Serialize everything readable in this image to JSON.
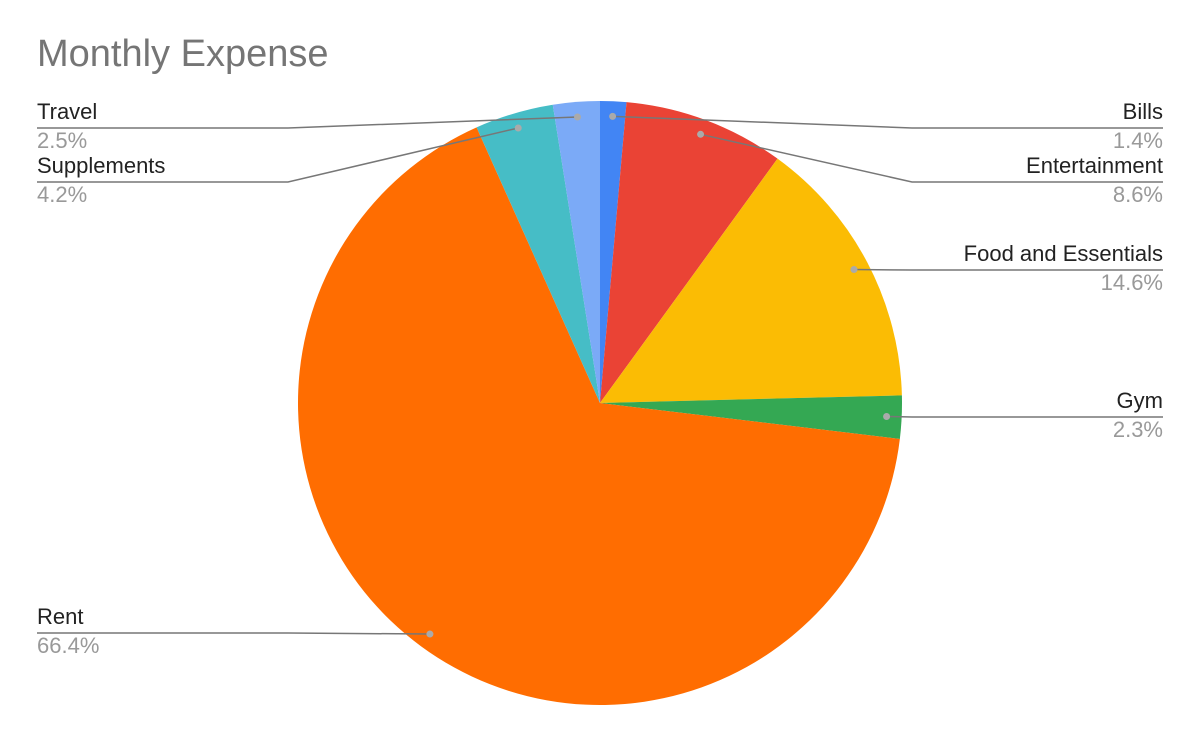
{
  "chart_data": {
    "type": "pie",
    "title": "Monthly Expense",
    "categories": [
      "Bills",
      "Entertainment",
      "Food and Essentials",
      "Gym",
      "Rent",
      "Supplements",
      "Travel"
    ],
    "values": [
      1.4,
      8.6,
      14.6,
      2.3,
      66.4,
      4.2,
      2.5
    ],
    "value_labels": [
      "1.4%",
      "8.6%",
      "14.6%",
      "2.3%",
      "66.4%",
      "4.2%",
      "2.5%"
    ],
    "colors": [
      "#4285f4",
      "#ea4335",
      "#fbbc04",
      "#34a853",
      "#ff6d01",
      "#46bdc6",
      "#7baaf7"
    ]
  }
}
